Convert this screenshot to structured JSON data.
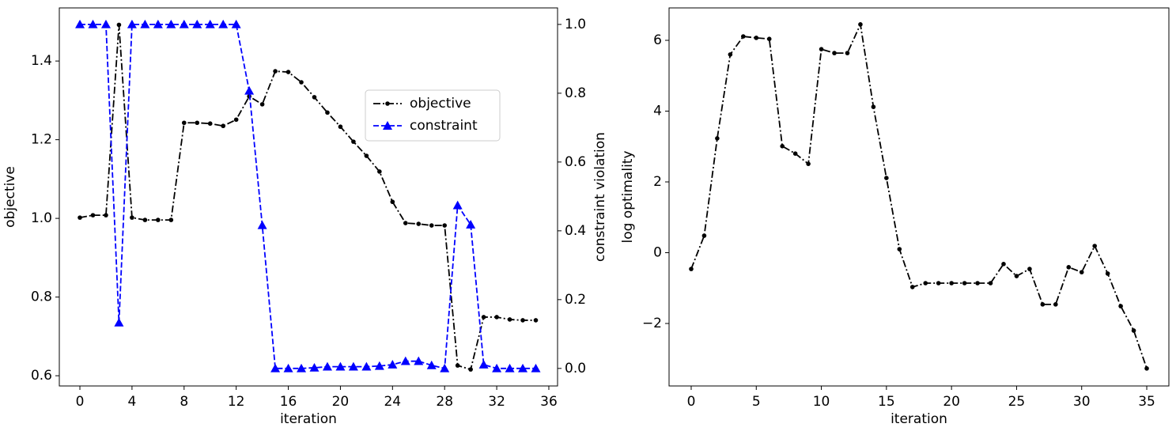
{
  "chart_data": [
    {
      "type": "line",
      "x_label": "iteration",
      "y_label": "objective",
      "y2_label": "constraint violation",
      "x": [
        0,
        1,
        2,
        3,
        4,
        5,
        6,
        7,
        8,
        9,
        10,
        11,
        12,
        13,
        14,
        15,
        16,
        17,
        18,
        19,
        20,
        21,
        22,
        23,
        24,
        25,
        26,
        27,
        28,
        29,
        30,
        31,
        32,
        33,
        34,
        35
      ],
      "series": [
        {
          "name": "objective",
          "color": "#000000",
          "linestyle": "dashdot",
          "marker": "circle",
          "axis": "y",
          "values": [
            1.002,
            1.008,
            1.008,
            1.492,
            1.002,
            0.996,
            0.996,
            0.996,
            1.243,
            1.243,
            1.241,
            1.235,
            1.251,
            1.31,
            1.29,
            1.374,
            1.372,
            1.346,
            1.308,
            1.269,
            1.233,
            1.195,
            1.159,
            1.119,
            1.042,
            0.988,
            0.986,
            0.982,
            0.982,
            0.626,
            0.616,
            0.749,
            0.749,
            0.743,
            0.741,
            0.741
          ]
        },
        {
          "name": "constraint",
          "color": "#0000ff",
          "linestyle": "dashed",
          "marker": "triangle",
          "axis": "y2",
          "values": [
            1,
            1,
            1,
            0.133,
            1,
            1,
            1,
            1,
            1,
            1,
            1,
            1,
            1,
            0.807,
            0.416,
            0,
            0,
            0,
            0.002,
            0.005,
            0.005,
            0.005,
            0.005,
            0.007,
            0.011,
            0.021,
            0.021,
            0.009,
            0,
            0.474,
            0.418,
            0.011,
            0,
            0,
            0,
            0
          ]
        }
      ],
      "xlim": [
        -1.58,
        36.67
      ],
      "xticks": [
        0,
        4,
        8,
        12,
        16,
        20,
        24,
        28,
        32,
        36
      ],
      "ylim": [
        0.574,
        1.535
      ],
      "yticks": [
        0.6,
        0.8,
        {
          "value": 1,
          "label": "1.0"
        },
        1.2,
        1.4
      ],
      "y2lim": [
        -0.051,
        1.048
      ],
      "y2ticks": [
        {
          "value": 0,
          "label": "0.0"
        },
        0.2,
        0.4,
        0.6,
        0.8,
        {
          "value": 1,
          "label": "1.0"
        }
      ],
      "grid": false,
      "legend": "center right"
    },
    {
      "type": "line",
      "x_label": "iteration",
      "y_label": "log optimality",
      "x": [
        0,
        1,
        2,
        3,
        4,
        5,
        6,
        7,
        8,
        9,
        10,
        11,
        12,
        13,
        14,
        15,
        16,
        17,
        18,
        19,
        20,
        21,
        22,
        23,
        24,
        25,
        26,
        27,
        28,
        29,
        30,
        31,
        32,
        33,
        34,
        35
      ],
      "series": [
        {
          "color": "#000000",
          "linestyle": "dashdot",
          "marker": "circle",
          "axis": "y",
          "values": [
            -0.46,
            0.48,
            3.23,
            5.6,
            6.11,
            6.07,
            6.04,
            3.01,
            2.8,
            2.51,
            5.75,
            5.64,
            5.64,
            6.45,
            4.12,
            2.11,
            0.1,
            -0.97,
            -0.86,
            -0.86,
            -0.86,
            -0.86,
            -0.86,
            -0.86,
            -0.32,
            -0.66,
            -0.46,
            -1.46,
            -1.46,
            -0.41,
            -0.55,
            0.19,
            -0.59,
            -1.51,
            -2.2,
            -3.27
          ]
        }
      ],
      "xlim": [
        -1.7,
        36.7
      ],
      "xticks": [
        0,
        5,
        10,
        15,
        20,
        25,
        30,
        35
      ],
      "ylim": [
        -3.765,
        6.916
      ],
      "yticks": [
        {
          "value": -2,
          "label": "−2"
        },
        0,
        2,
        4,
        6
      ],
      "grid": false
    }
  ]
}
